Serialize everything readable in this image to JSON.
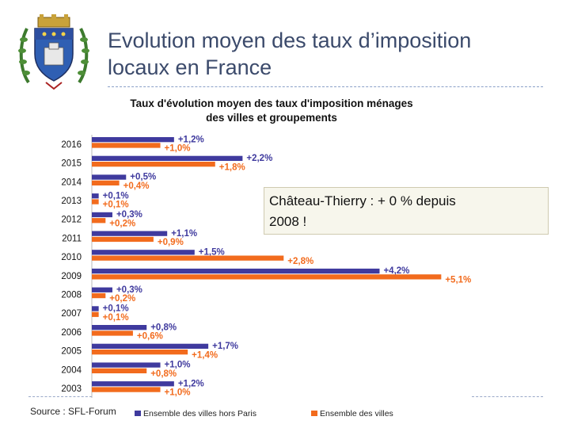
{
  "slide": {
    "title_line1": "Evolution moyen des taux d’imposition",
    "title_line2": "locaux en France",
    "callout_line1": "Château-Thierry : + 0 % depuis",
    "callout_line2": "2008 !",
    "source": "Source : SFL-Forum"
  },
  "colors": {
    "series1": "#3f3a9e",
    "series2": "#f26b1d",
    "title": "#3b4a6b"
  },
  "icons": {
    "crest": "coat-of-arms-icon"
  },
  "chart_data": {
    "type": "bar",
    "orientation": "horizontal",
    "title_line1": "Taux d'évolution moyen des taux d'imposition ménages",
    "title_line2": "des villes et groupements",
    "categories": [
      "2016",
      "2015",
      "2014",
      "2013",
      "2012",
      "2011",
      "2010",
      "2009",
      "2008",
      "2007",
      "2006",
      "2005",
      "2004",
      "2003"
    ],
    "series": [
      {
        "name": "Ensemble des villes hors Paris",
        "values": [
          1.2,
          2.2,
          0.5,
          0.1,
          0.3,
          1.1,
          1.5,
          4.2,
          0.3,
          0.1,
          0.8,
          1.7,
          1.0,
          1.2
        ],
        "labels": [
          "+1,2%",
          "+2,2%",
          "+0,5%",
          "+0,1%",
          "+0,3%",
          "+1,1%",
          "+1,5%",
          "+4,2%",
          "+0,3%",
          "+0,1%",
          "+0,8%",
          "+1,7%",
          "+1,0%",
          "+1,2%"
        ]
      },
      {
        "name": "Ensemble des villes",
        "values": [
          1.0,
          1.8,
          0.4,
          0.1,
          0.2,
          0.9,
          2.8,
          5.1,
          0.2,
          0.1,
          0.6,
          1.4,
          0.8,
          1.0
        ],
        "labels": [
          "+1,0%",
          "+1,8%",
          "+0,4%",
          "+0,1%",
          "+0,2%",
          "+0,9%",
          "+2,8%",
          "+5,1%",
          "+0,2%",
          "+0,1%",
          "+0,6%",
          "+1,4%",
          "+0,8%",
          "+1,0%"
        ]
      }
    ],
    "xlim": [
      0,
      5.2
    ],
    "grid": false,
    "legend": "bottom"
  }
}
